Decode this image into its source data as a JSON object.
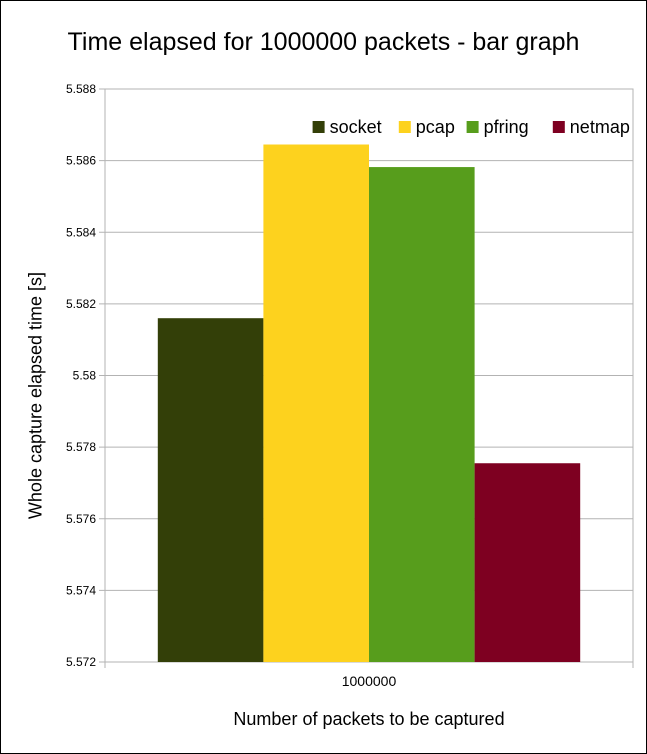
{
  "chart_data": {
    "type": "bar",
    "title": "Time elapsed for 1000000 packets - bar graph",
    "xlabel": "Number of packets to be captured",
    "ylabel": "Whole capture elapsed time [s]",
    "categories": [
      "1000000"
    ],
    "series": [
      {
        "name": "socket",
        "color": "#333f08",
        "values": [
          5.5816
        ]
      },
      {
        "name": "pcap",
        "color": "#fdd21e",
        "values": [
          5.58645
        ]
      },
      {
        "name": "pfring",
        "color": "#579d1c",
        "values": [
          5.58582
        ]
      },
      {
        "name": "netmap",
        "color": "#7e0021",
        "values": [
          5.57755
        ]
      }
    ],
    "ylim": [
      5.572,
      5.588
    ],
    "yticks": [
      "5.572",
      "5.574",
      "5.576",
      "5.578",
      "5.58",
      "5.582",
      "5.584",
      "5.586",
      "5.588"
    ],
    "grid": true,
    "legend_position": "top-right"
  }
}
